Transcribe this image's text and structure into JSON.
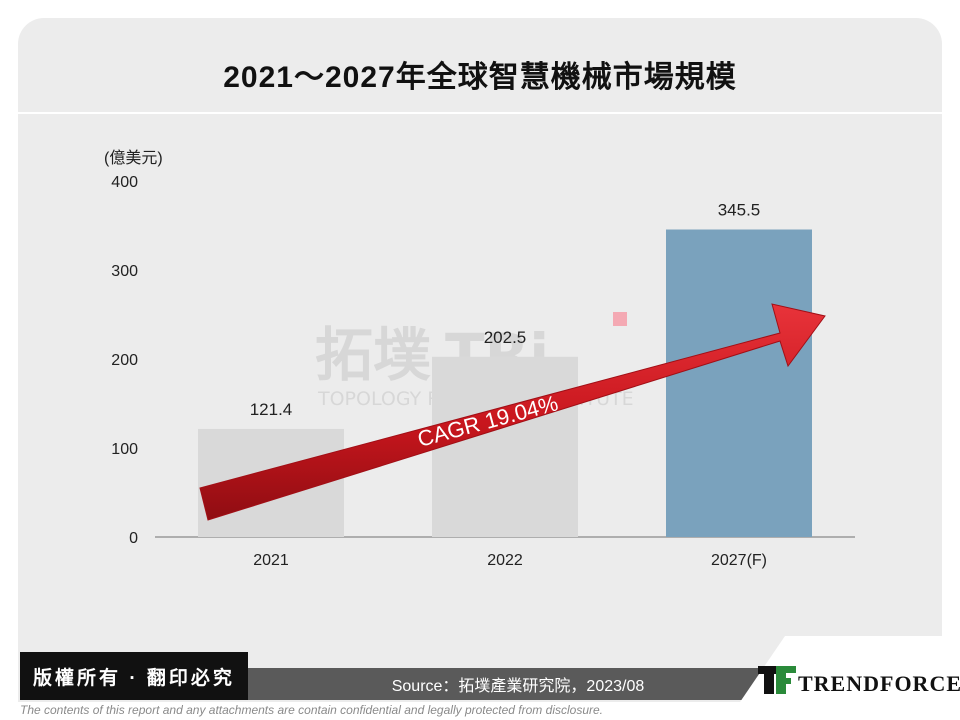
{
  "slide": {
    "title": "2021～2027年全球智慧機械市場規模",
    "copyright_badge": "版權所有 · 翻印必究",
    "source": "Source：拓墣產業研究院，2023/08",
    "disclaimer": "The contents of this report and any attachments are contain confidential and legally protected from disclosure.",
    "logo_text": "TRENDFORCE",
    "watermark": "拓墣 TRi TOPOLOGY RESEARCH INSTITUTE"
  },
  "chart_data": {
    "type": "bar",
    "title": "2021～2027年全球智慧機械市場規模",
    "ylabel": "(億美元)",
    "xlabel": "",
    "ylim": [
      0,
      400
    ],
    "yticks": [
      0,
      100,
      200,
      300,
      400
    ],
    "categories": [
      "2021",
      "2022",
      "2027(F)"
    ],
    "values": [
      121.4,
      202.5,
      345.5
    ],
    "value_labels": [
      "121.4",
      "202.5",
      "345.5"
    ],
    "bar_colors": [
      "#d9d9d9",
      "#d9d9d9",
      "#7aa2bd"
    ],
    "grid": false,
    "annotation": {
      "text": "CAGR 19.04%",
      "color": "#c8161d"
    }
  }
}
